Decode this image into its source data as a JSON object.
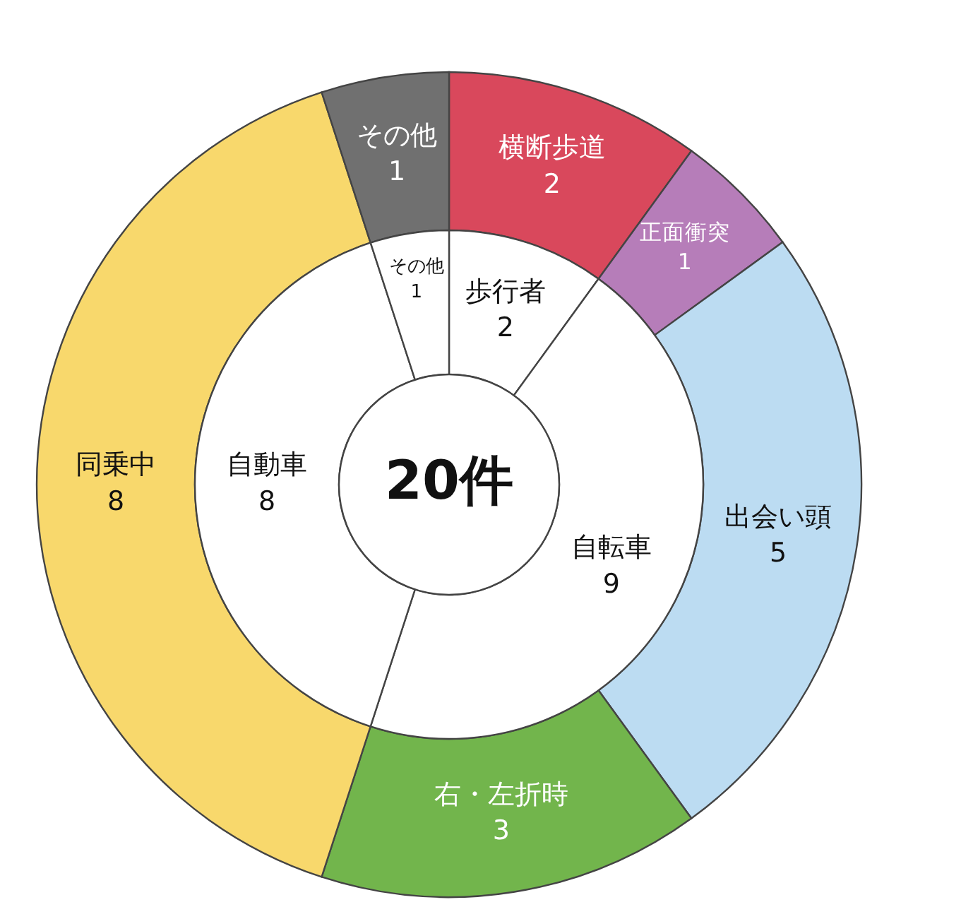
{
  "chart_data": [
    {
      "type": "donut",
      "categories": [
        "横断歩道",
        "正面衝突",
        "出会い頭",
        "右・左折時",
        "同乗中",
        "その他"
      ],
      "values": [
        2,
        1,
        5,
        3,
        8,
        1
      ],
      "colors": [
        "#d9485c",
        "#b67db9",
        "#bcdcf2",
        "#72b54c",
        "#f8d86c",
        "#707070"
      ],
      "data_labels": true
    },
    {
      "type": "donut",
      "categories": [
        "歩行者",
        "自転車",
        "自動車",
        "その他"
      ],
      "values": [
        2,
        9,
        8,
        1
      ],
      "colors": [
        "#ffffff",
        "#ffffff",
        "#ffffff",
        "#ffffff"
      ],
      "data_labels": true,
      "annotations": [
        "20件"
      ]
    }
  ]
}
